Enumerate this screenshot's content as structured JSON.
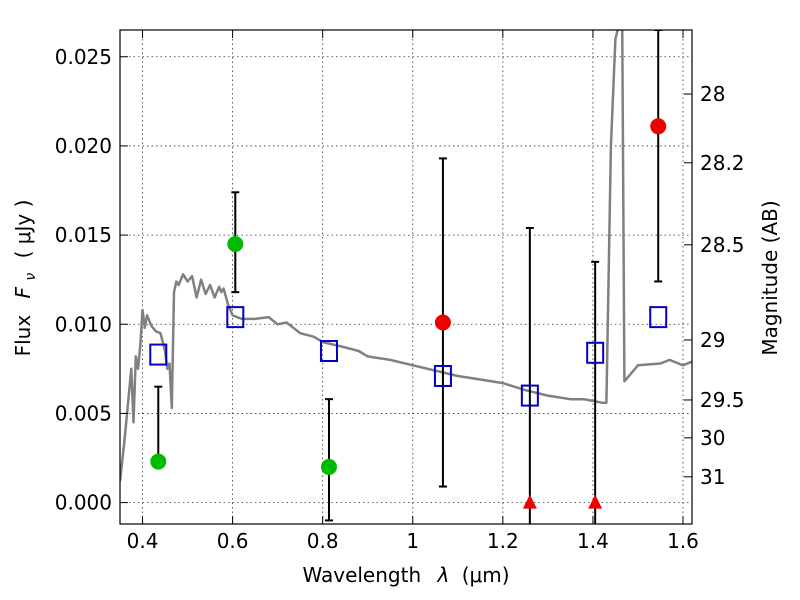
{
  "chart_data": {
    "type": "scatter",
    "xlabel_text": "Wavelength",
    "xlabel_symbol": "λ",
    "xlabel_unit": "(μm)",
    "ylabel_text": "Flux",
    "ylabel_symbol": "F",
    "ylabel_subscript": "ν",
    "ylabel_unit": "( μJy )",
    "y2label": "Magnitude (AB)",
    "xlim": [
      0.35,
      1.62
    ],
    "ylim": [
      -0.0012,
      0.0265
    ],
    "x_ticks": [
      0.4,
      0.6,
      0.8,
      1.0,
      1.2,
      1.4,
      1.6
    ],
    "x_tick_labels": [
      "0.4",
      "0.6",
      "0.8",
      "1",
      "1.2",
      "1.4",
      "1.6"
    ],
    "y_ticks": [
      0.0,
      0.005,
      0.01,
      0.015,
      0.02,
      0.025
    ],
    "y_tick_labels": [
      "0.000",
      "0.005",
      "0.010",
      "0.015",
      "0.020",
      "0.025"
    ],
    "y2_ticks": [
      28,
      28.2,
      28.5,
      29,
      29.5,
      30,
      31
    ],
    "y2_tick_labels": [
      "28",
      "28.2",
      "28.5",
      "29",
      "29.5",
      "30",
      "31"
    ],
    "grid": true,
    "colors": {
      "detection": "#00bb00",
      "red_point": "#ee0000",
      "model_square": "#0000cc",
      "template_line": "#808080",
      "error_bar": "#000000"
    },
    "series": [
      {
        "marker": "circle",
        "color": "#00bb00",
        "points": [
          {
            "x": 0.435,
            "y": 0.0023,
            "yerr_low": 0.0023,
            "yerr_high": 0.0065
          },
          {
            "x": 0.606,
            "y": 0.0145,
            "yerr_low": 0.0118,
            "yerr_high": 0.0174
          },
          {
            "x": 0.814,
            "y": 0.002,
            "yerr_low": -0.001,
            "yerr_high": 0.0058
          }
        ]
      },
      {
        "marker": "circle",
        "color": "#ee0000",
        "points": [
          {
            "x": 1.067,
            "y": 0.0101,
            "yerr_low": 0.0009,
            "yerr_high": 0.0193
          },
          {
            "x": 1.545,
            "y": 0.0211,
            "yerr_low": 0.0124,
            "yerr_high": 0.0265
          }
        ]
      },
      {
        "marker": "triangle",
        "color": "#ee0000",
        "points": [
          {
            "x": 1.26,
            "y": 0.0,
            "yerr_low": -0.0012,
            "yerr_high": 0.0154
          },
          {
            "x": 1.405,
            "y": 0.0,
            "yerr_low": -0.0012,
            "yerr_high": 0.0135
          }
        ]
      },
      {
        "marker": "square",
        "color": "#0000cc",
        "points": [
          {
            "x": 0.435,
            "y": 0.0083
          },
          {
            "x": 0.606,
            "y": 0.0104
          },
          {
            "x": 0.814,
            "y": 0.0085
          },
          {
            "x": 1.067,
            "y": 0.0071
          },
          {
            "x": 1.26,
            "y": 0.006
          },
          {
            "x": 1.405,
            "y": 0.0084
          },
          {
            "x": 1.545,
            "y": 0.0104
          }
        ]
      },
      {
        "marker": "line",
        "color": "#808080",
        "x": [
          0.35,
          0.36,
          0.375,
          0.38,
          0.385,
          0.39,
          0.395,
          0.4,
          0.405,
          0.41,
          0.42,
          0.43,
          0.44,
          0.45,
          0.455,
          0.46,
          0.465,
          0.47,
          0.475,
          0.48,
          0.49,
          0.5,
          0.51,
          0.52,
          0.53,
          0.54,
          0.55,
          0.56,
          0.57,
          0.575,
          0.58,
          0.59,
          0.6,
          0.62,
          0.65,
          0.68,
          0.7,
          0.72,
          0.75,
          0.78,
          0.8,
          0.85,
          0.88,
          0.9,
          0.95,
          1.0,
          1.05,
          1.1,
          1.15,
          1.2,
          1.25,
          1.3,
          1.35,
          1.38,
          1.4,
          1.42,
          1.425,
          1.43,
          1.44,
          1.45,
          1.46,
          1.465,
          1.47,
          1.5,
          1.55,
          1.57,
          1.6,
          1.62
        ],
        "y": [
          0.0012,
          0.0035,
          0.0075,
          0.0045,
          0.0082,
          0.0075,
          0.0088,
          0.0108,
          0.0098,
          0.0105,
          0.0099,
          0.0096,
          0.0095,
          0.0085,
          0.0075,
          0.0078,
          0.0053,
          0.0118,
          0.0124,
          0.0122,
          0.0128,
          0.0124,
          0.0127,
          0.0115,
          0.0125,
          0.0117,
          0.0122,
          0.0115,
          0.0121,
          0.0118,
          0.012,
          0.0111,
          0.0105,
          0.0103,
          0.0103,
          0.0104,
          0.01,
          0.0101,
          0.0095,
          0.0093,
          0.009,
          0.0087,
          0.0085,
          0.0082,
          0.008,
          0.0077,
          0.0074,
          0.0071,
          0.0069,
          0.0067,
          0.0063,
          0.006,
          0.0058,
          0.0058,
          0.0057,
          0.0056,
          0.0056,
          0.0056,
          0.02,
          0.026,
          0.027,
          0.027,
          0.0068,
          0.0077,
          0.0078,
          0.008,
          0.0077,
          0.0079
        ]
      }
    ]
  }
}
